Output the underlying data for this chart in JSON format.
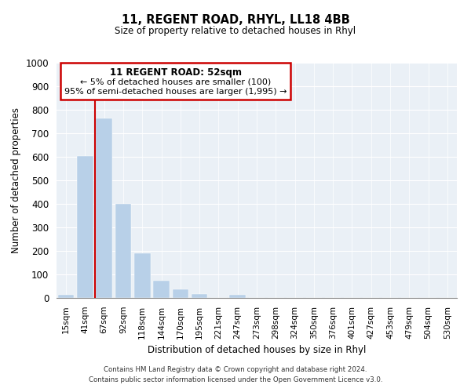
{
  "title": "11, REGENT ROAD, RHYL, LL18 4BB",
  "subtitle": "Size of property relative to detached houses in Rhyl",
  "xlabel": "Distribution of detached houses by size in Rhyl",
  "ylabel": "Number of detached properties",
  "bar_labels": [
    "15sqm",
    "41sqm",
    "67sqm",
    "92sqm",
    "118sqm",
    "144sqm",
    "170sqm",
    "195sqm",
    "221sqm",
    "247sqm",
    "273sqm",
    "298sqm",
    "324sqm",
    "350sqm",
    "376sqm",
    "401sqm",
    "427sqm",
    "453sqm",
    "479sqm",
    "504sqm",
    "530sqm"
  ],
  "bar_values": [
    15,
    605,
    765,
    400,
    190,
    75,
    38,
    16,
    0,
    12,
    0,
    0,
    0,
    0,
    0,
    0,
    0,
    0,
    0,
    0,
    0
  ],
  "bar_color": "#b8d0e8",
  "property_line_x": 1.5,
  "annotation_title": "11 REGENT ROAD: 52sqm",
  "annotation_line1": "← 5% of detached houses are smaller (100)",
  "annotation_line2": "95% of semi-detached houses are larger (1,995) →",
  "vline_color": "#cc0000",
  "ylim": [
    0,
    1000
  ],
  "yticks": [
    0,
    100,
    200,
    300,
    400,
    500,
    600,
    700,
    800,
    900,
    1000
  ],
  "footnote1": "Contains HM Land Registry data © Crown copyright and database right 2024.",
  "footnote2": "Contains public sector information licensed under the Open Government Licence v3.0.",
  "bg_color": "#eaf0f6",
  "grid_color": "#ffffff"
}
